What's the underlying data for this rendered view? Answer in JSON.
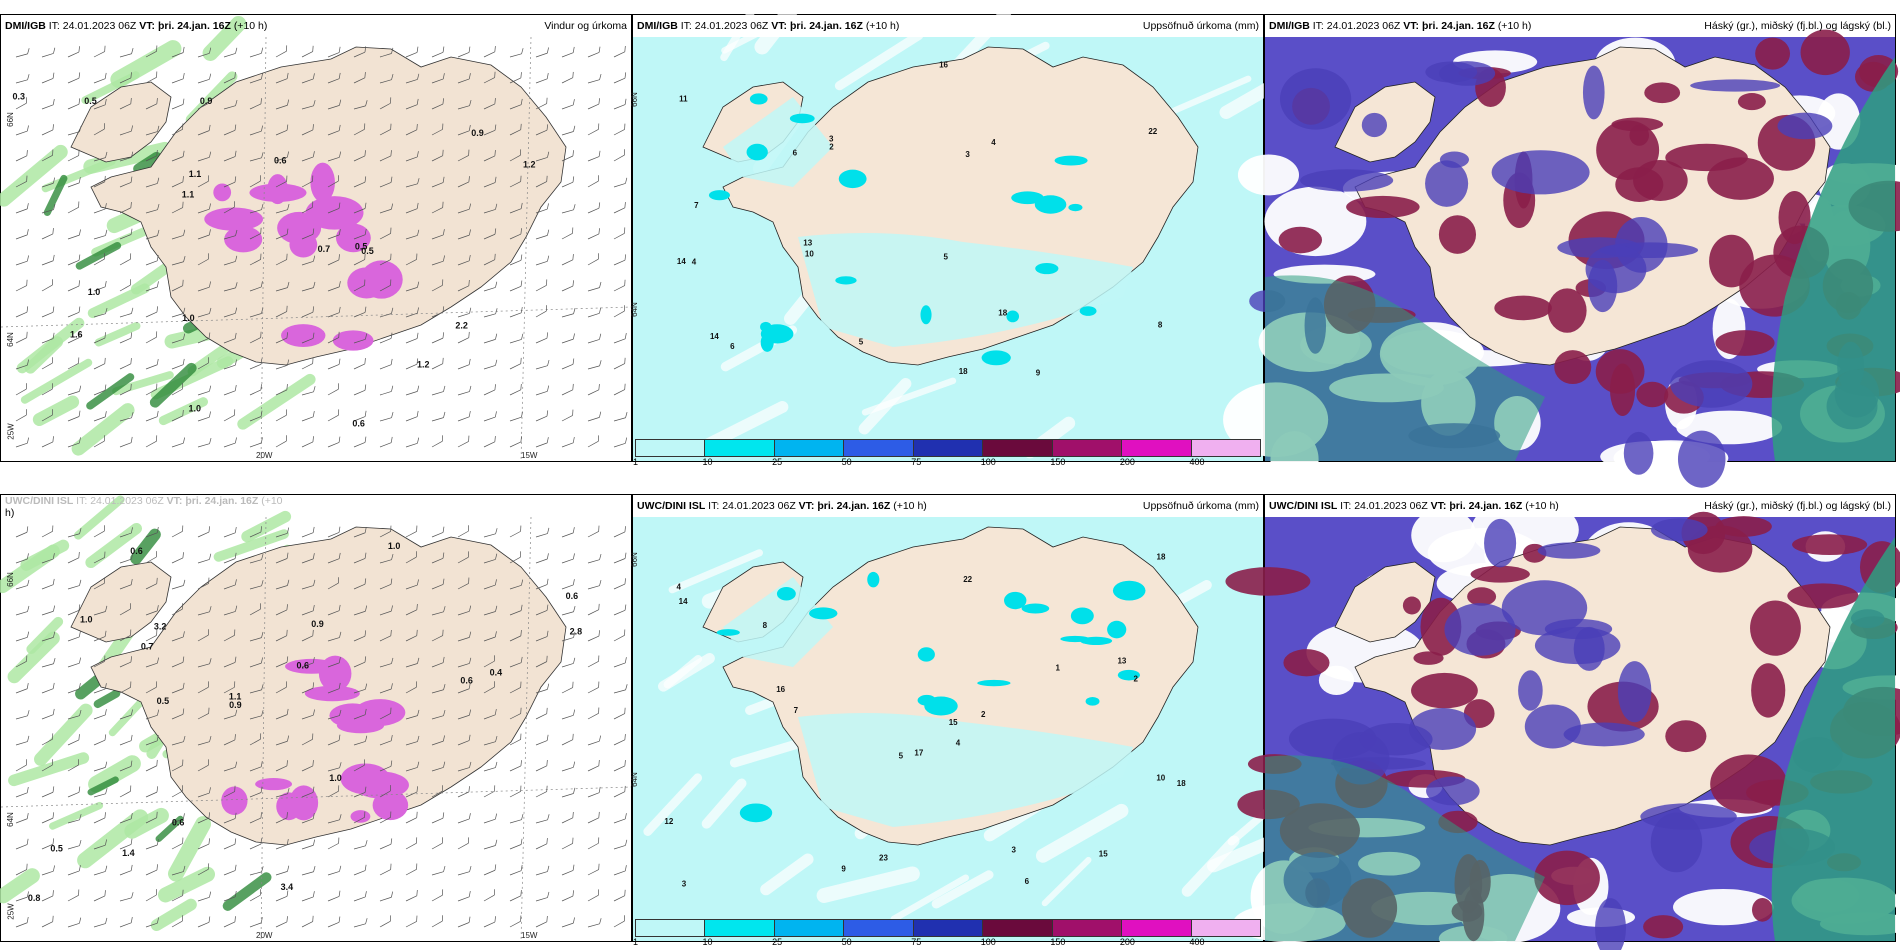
{
  "panels": [
    {
      "id": "p1",
      "source": "DMI/IGB",
      "it_label": "IT:",
      "it": "24.01.2023 06Z",
      "vt_label": "VT:",
      "vt": "þri. 24.jan. 16Z",
      "lead": "(+10 h)",
      "title": "Vindur og úrkoma",
      "type": "wind"
    },
    {
      "id": "p2",
      "source": "DMI/IGB",
      "it_label": "IT:",
      "it": "24.01.2023 06Z",
      "vt_label": "VT:",
      "vt": "þri. 24.jan. 16Z",
      "lead": "(+10 h)",
      "title": "Uppsöfnuð úrkoma (mm)",
      "type": "accum"
    },
    {
      "id": "p3",
      "source": "DMI/IGB",
      "it_label": "IT:",
      "it": "24.01.2023 06Z",
      "vt_label": "VT:",
      "vt": "þri. 24.jan. 16Z",
      "lead": "(+10 h)",
      "title": "Háský (gr.), miðský (fj.bl.) og lágský (bl.)",
      "type": "cloud"
    },
    {
      "id": "p4",
      "source": "UWC/DINI ISL",
      "it_label": "IT:",
      "it": "24.01.2023 06Z",
      "vt_label": "VT:",
      "vt": "þri. 24.jan. 16Z",
      "lead": "(+10",
      "lead2": "h)",
      "title": "",
      "type": "wind"
    },
    {
      "id": "p5",
      "source": "UWC/DINI ISL",
      "it_label": "IT:",
      "it": "24.01.2023 06Z",
      "vt_label": "VT:",
      "vt": "þri. 24.jan. 16Z",
      "lead": "(+10 h)",
      "title": "Uppsöfnuð úrkoma (mm)",
      "type": "accum"
    },
    {
      "id": "p6",
      "source": "UWC/DINI ISL",
      "it_label": "IT:",
      "it": "24.01.2023 06Z",
      "vt_label": "VT:",
      "vt": "þri. 24.jan. 16Z",
      "lead": "(+10 h)",
      "title": "Háský (gr.), miðský (fj.bl.) og lágský (bl.)",
      "type": "cloud"
    }
  ],
  "colorbar": {
    "labels": [
      "1",
      "10",
      "25",
      "50",
      "75",
      "100",
      "150",
      "200",
      "400"
    ],
    "colors": [
      "#bff7f7",
      "#00e6ee",
      "#00b4f0",
      "#2d5ce6",
      "#2030b0",
      "#6a0a3c",
      "#a0106a",
      "#e010c0",
      "#f0b0f0"
    ]
  },
  "axis_labels": {
    "lon1": "20W",
    "lon2": "15W",
    "lat1": "66N",
    "lat2": "64N",
    "lon3": "25W"
  },
  "wind_values_top": [
    "1.6",
    "0.9",
    "0.6",
    "0.5",
    "0.3",
    "1.0",
    "1.2",
    "0.7",
    "0.9",
    "1.1",
    "1.0",
    "1.1",
    "0.5",
    "0.6",
    "1.0",
    "1.2",
    "2.2",
    "0.5"
  ],
  "wind_values_bottom": [
    "0.4",
    "3.2",
    "3.4",
    "0.6",
    "0.9",
    "1.1",
    "1.0",
    "0.8",
    "0.6",
    "1.0",
    "0.5",
    "0.6",
    "0.7",
    "0.6",
    "0.9",
    "2.8",
    "1.0",
    "0.5",
    "1.4",
    "0.6"
  ],
  "accum_values_top": [
    "3",
    "4",
    "7",
    "6",
    "9",
    "3",
    "14",
    "16",
    "18",
    "10",
    "22",
    "14",
    "13",
    "6",
    "2",
    "5",
    "4",
    "5",
    "8",
    "18",
    "11"
  ],
  "accum_values_bottom": [
    "18",
    "17",
    "15",
    "12",
    "2",
    "3",
    "4",
    "7",
    "10",
    "13",
    "15",
    "23",
    "16",
    "22",
    "18",
    "14",
    "2",
    "1",
    "3",
    "4",
    "8",
    "9",
    "5",
    "6"
  ]
}
